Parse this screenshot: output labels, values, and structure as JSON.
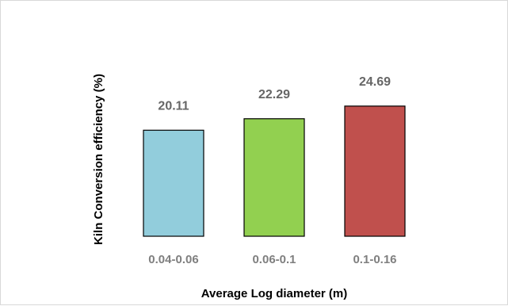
{
  "chart_data": {
    "type": "bar",
    "categories": [
      "0.04-0.06",
      "0.06-0.1",
      "0.1-0.16"
    ],
    "values": [
      20.11,
      22.29,
      24.69
    ],
    "data_labels": [
      "20.11",
      "22.29",
      "24.69"
    ],
    "title": "",
    "xlabel": "Average Log diameter (m)",
    "ylabel": "Kiln Conversion efficiency (%)",
    "ylim": [
      0,
      30
    ],
    "grid": false,
    "legend": "none",
    "colors": [
      "#92cddc",
      "#92d050",
      "#c0504d"
    ],
    "bar_edge_color": "#000000"
  }
}
